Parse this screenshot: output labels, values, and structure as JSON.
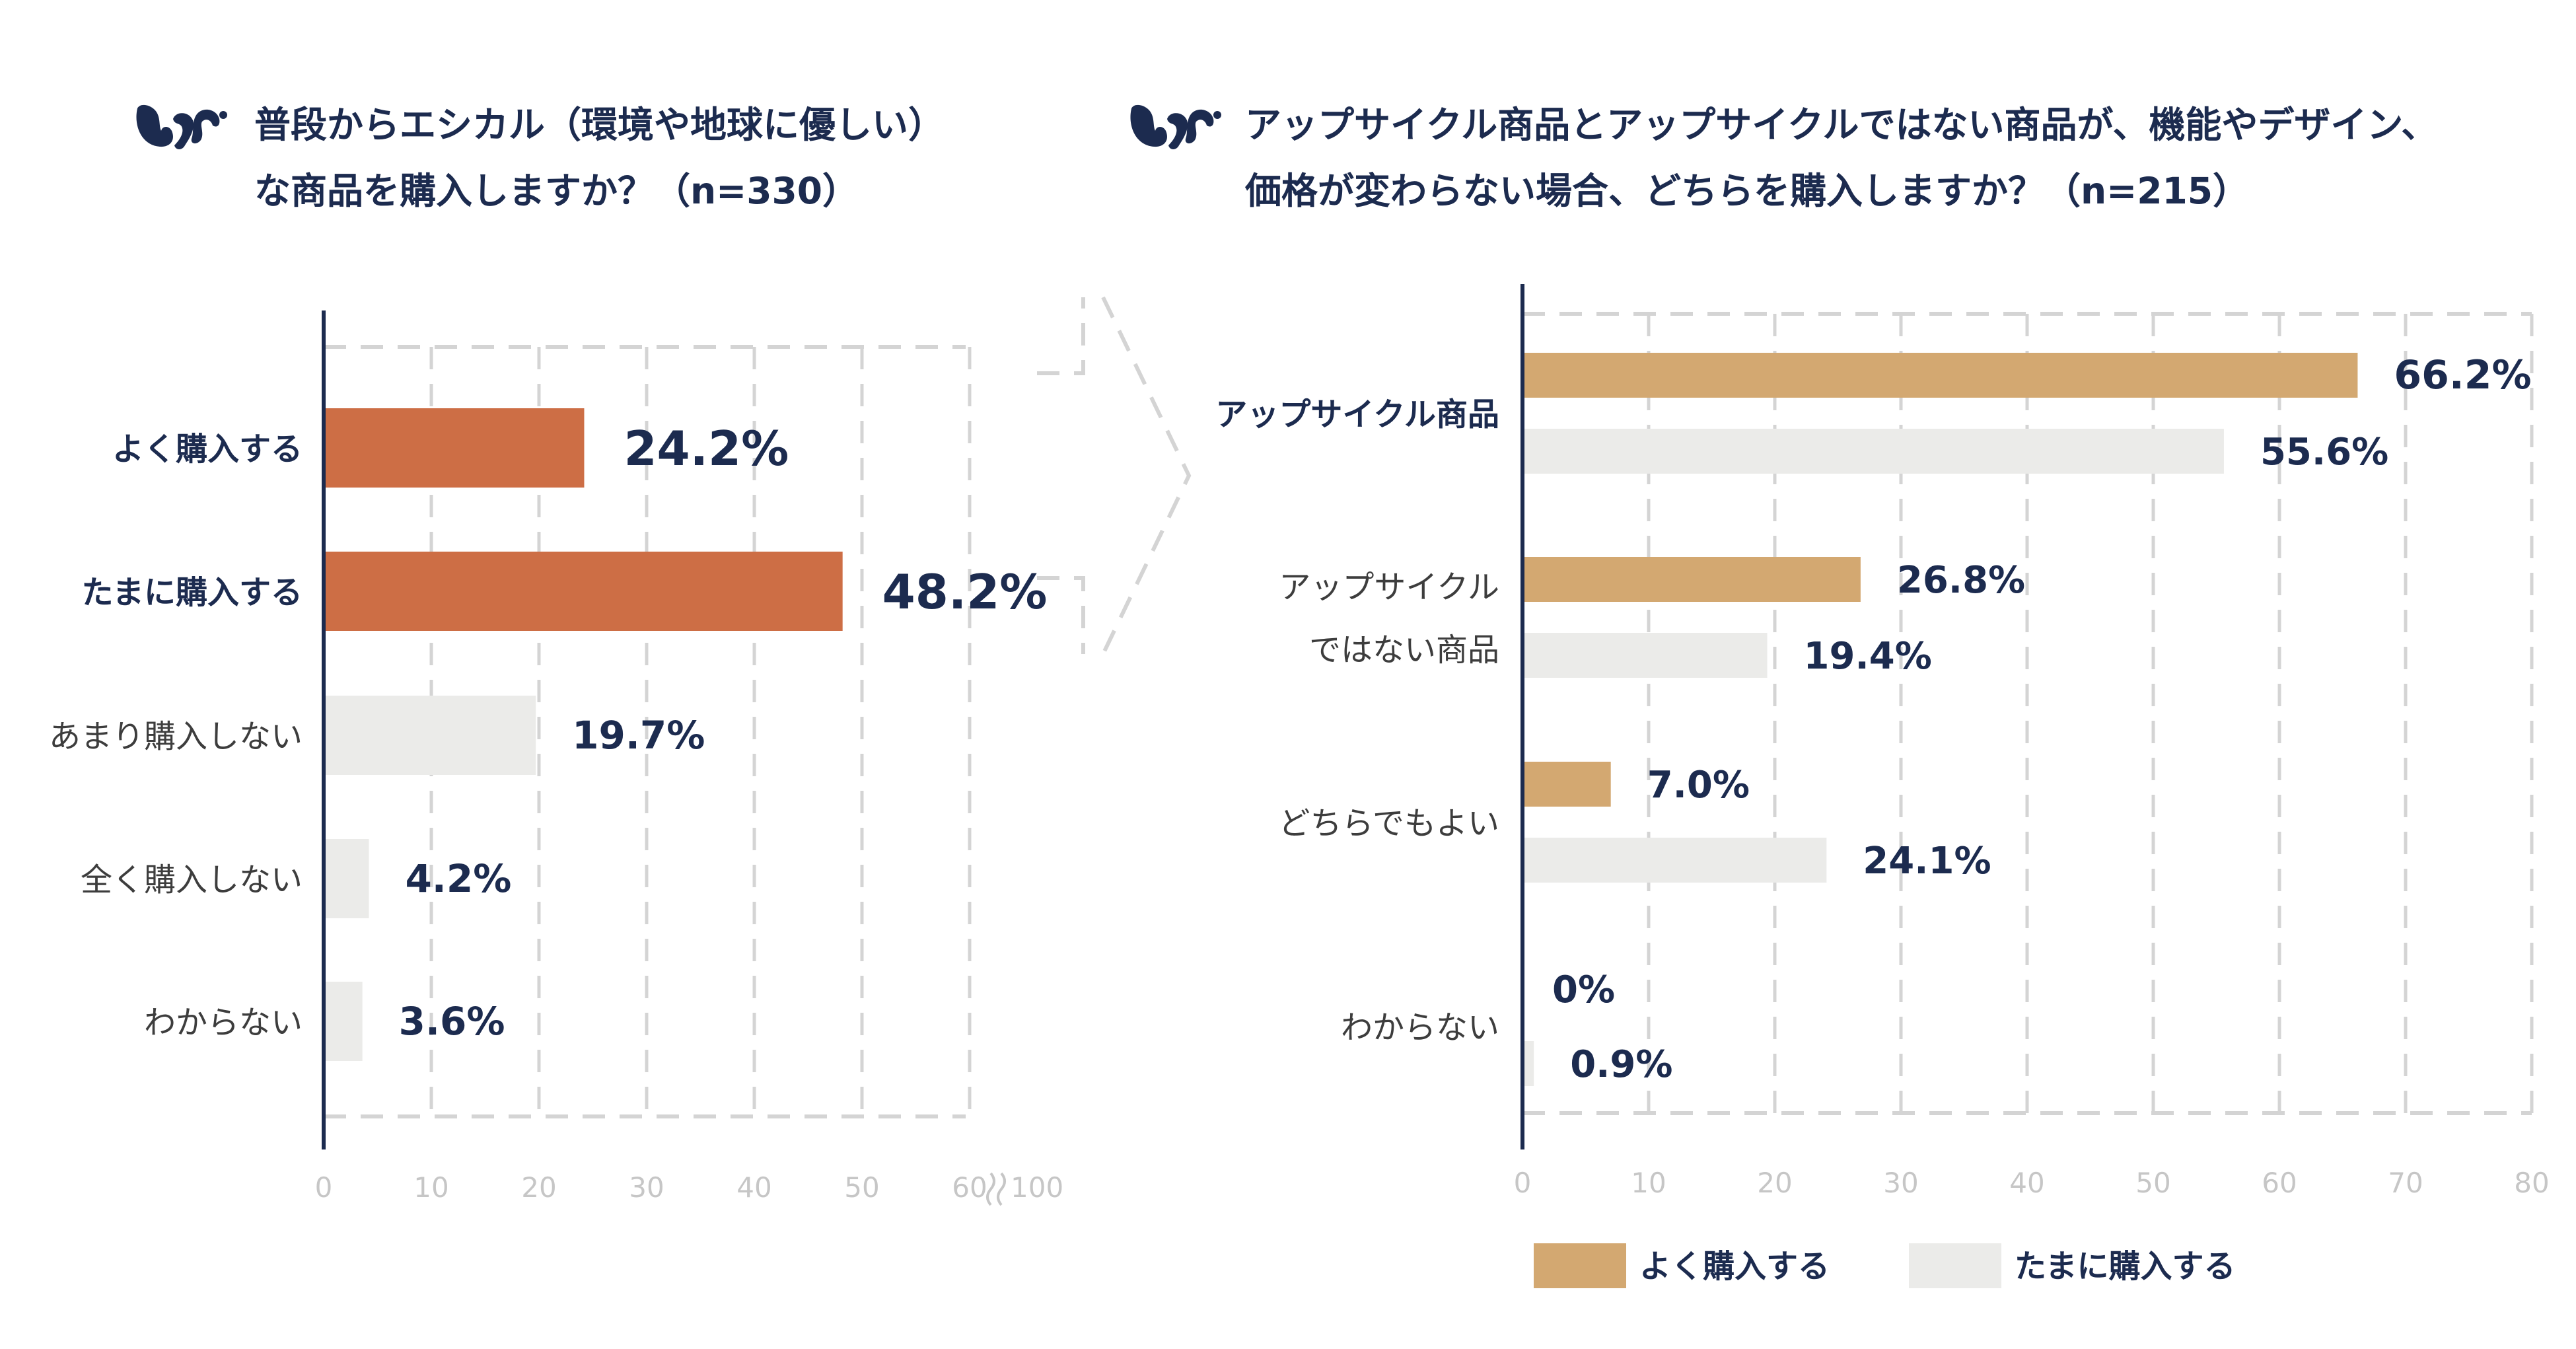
{
  "left_chart": {
    "title_line1": "普段からエシカル（環境や地球に優しい）",
    "title_line2": "な商品を購入しますか？（n=330）"
  },
  "right_chart": {
    "title_line1": "アップサイクル商品とアップサイクルではない商品が、機能やデザイン、",
    "title_line2": "価格が変わらない場合、どちらを購入しますか？（n=215）"
  },
  "colors": {
    "axis": "#1c2b4f",
    "grid": "#d4d4d4",
    "tick": "#c6c6c6",
    "orange": "#cd6e45",
    "tan": "#d3a871",
    "light": "#ebebe9",
    "label_dark": "#1c2b4f",
    "label_muted": "#3d3d3d"
  },
  "chart_data": [
    {
      "type": "bar",
      "orientation": "horizontal",
      "title": "普段からエシカル（環境や地球に優しい）な商品を購入しますか？（n=330）",
      "categories": [
        "よく購入する",
        "たまに購入する",
        "あまり購入しない",
        "全く購入しない",
        "わからない"
      ],
      "values": [
        24.2,
        48.2,
        19.7,
        4.2,
        3.6
      ],
      "value_labels": [
        "24.2%",
        "48.2%",
        "19.7%",
        "4.2%",
        "3.6%"
      ],
      "x_ticks": [
        "0",
        "10",
        "20",
        "30",
        "40",
        "50",
        "60"
      ],
      "x_break_label": "100",
      "xlim": [
        0,
        100
      ],
      "axis_break_after": 60
    },
    {
      "type": "bar",
      "orientation": "horizontal",
      "title": "アップサイクル商品とアップサイクルではない商品が、機能やデザイン、価格が変わらない場合、どちらを購入しますか？（n=215）",
      "categories": [
        "アップサイクル商品",
        "アップサイクルではない商品",
        "どちらでもよい",
        "わからない"
      ],
      "category_lines": [
        [
          "アップサイクル商品"
        ],
        [
          "アップサイクル",
          "ではない商品"
        ],
        [
          "どちらでもよい"
        ],
        [
          "わからない"
        ]
      ],
      "series": [
        {
          "name": "よく購入する",
          "values": [
            66.2,
            26.8,
            7.0,
            0
          ],
          "labels": [
            "66.2%",
            "26.8%",
            "7.0%",
            "0%"
          ]
        },
        {
          "name": "たまに購入する",
          "values": [
            55.6,
            19.4,
            24.1,
            0.9
          ],
          "labels": [
            "55.6%",
            "19.4%",
            "24.1%",
            "0.9%"
          ]
        }
      ],
      "x_ticks": [
        "0",
        "10",
        "20",
        "30",
        "40",
        "50",
        "60",
        "70",
        "80"
      ],
      "xlim": [
        0,
        80
      ],
      "legend": [
        "よく購入する",
        "たまに購入する"
      ],
      "legend_position": "bottom"
    }
  ]
}
